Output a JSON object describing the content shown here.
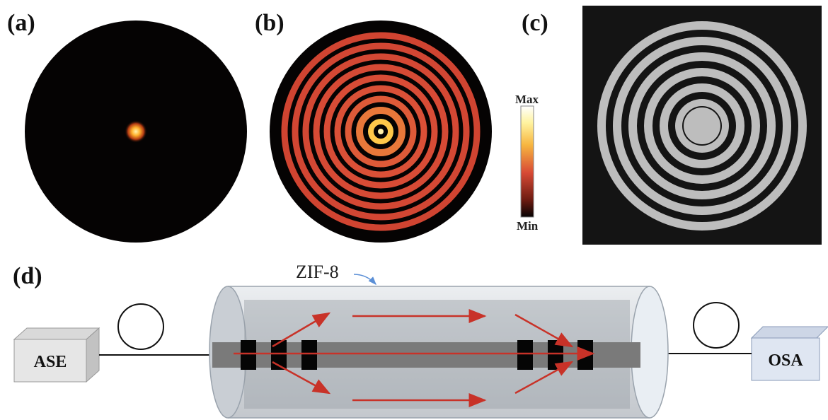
{
  "panels": {
    "a": "(a)",
    "b": "(b)",
    "c": "(c)",
    "d": "(d)"
  },
  "colorbar": {
    "max_label": "Max",
    "min_label": "Min"
  },
  "setup": {
    "source_label": "ASE",
    "analyzer_label": "OSA",
    "coating_label": "ZIF-8"
  },
  "colors": {
    "mode_dark": "#050303",
    "ring_red": "#d84a35",
    "ring_bright": "#ffe08a",
    "binary_gray": "#bdbdbd",
    "binary_bg": "#141414",
    "arrow_red": "#c83228",
    "fiber_gray": "#7a7a7a",
    "box_blue": "#dfe6f2"
  }
}
